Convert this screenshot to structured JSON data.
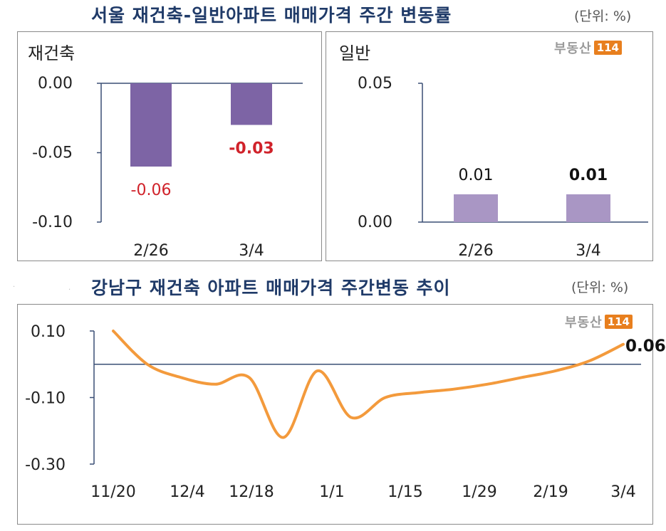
{
  "top_title": "서울 재건축-일반아파트 매매가격 주간 변동률",
  "top_unit": "(단위: %)",
  "bottom_title": "강남구 재건축 아파트 매매가격 주간변동 추이",
  "bottom_unit": "(단위: %)",
  "logo": {
    "text": "부동산",
    "number": "114",
    "colors": {
      "text": "#9a9a9a",
      "box": "#e87f1e"
    }
  },
  "colors": {
    "title": "#1f3a68",
    "bar_rebuild": "#7d64a5",
    "bar_general": "#a996c4",
    "negative_label": "#d0222a",
    "line": "#f39a3c"
  },
  "chart_data": [
    {
      "type": "bar",
      "panel_label": "재건축",
      "categories": [
        "2/26",
        "3/4"
      ],
      "values": [
        -0.06,
        -0.03
      ],
      "value_labels": [
        "-0.06",
        "-0.03"
      ],
      "ylim": [
        -0.1,
        0.0
      ],
      "yticks": [
        "0.00",
        "-0.05",
        "-0.10"
      ],
      "grid": false
    },
    {
      "type": "bar",
      "panel_label": "일반",
      "categories": [
        "2/26",
        "3/4"
      ],
      "values": [
        0.01,
        0.01
      ],
      "value_labels": [
        "0.01",
        "0.01"
      ],
      "ylim": [
        0.0,
        0.05
      ],
      "yticks": [
        "0.05",
        "0.00"
      ],
      "grid": false
    },
    {
      "type": "line",
      "x_tick_labels": [
        "11/20",
        "12/4",
        "12/18",
        "1/1",
        "1/15",
        "1/29",
        "2/19",
        "3/4"
      ],
      "ylim": [
        -0.3,
        0.1
      ],
      "yticks": [
        "0.10",
        "-0.10",
        "-0.30"
      ],
      "last_value_label": "0.06",
      "points": [
        {
          "x": "11/20",
          "y": 0.1
        },
        {
          "x": "11/27",
          "y": 0.0
        },
        {
          "x": "12/4",
          "y": -0.04
        },
        {
          "x": "12/11",
          "y": -0.06
        },
        {
          "x": "12/18",
          "y": -0.04
        },
        {
          "x": "12/25",
          "y": -0.22
        },
        {
          "x": "1/1",
          "y": -0.02
        },
        {
          "x": "1/8",
          "y": -0.16
        },
        {
          "x": "1/15",
          "y": -0.1
        },
        {
          "x": "1/22",
          "y": -0.085
        },
        {
          "x": "1/29",
          "y": -0.075
        },
        {
          "x": "2/5",
          "y": -0.06
        },
        {
          "x": "2/12",
          "y": -0.04
        },
        {
          "x": "2/19",
          "y": -0.02
        },
        {
          "x": "2/26",
          "y": 0.01
        },
        {
          "x": "3/4",
          "y": 0.06
        }
      ],
      "grid": false
    }
  ]
}
